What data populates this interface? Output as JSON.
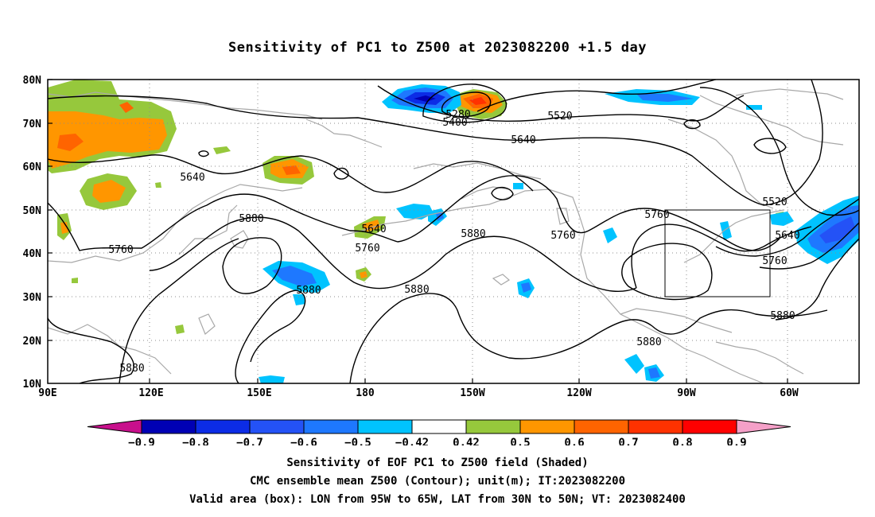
{
  "title": "Sensitivity of PC1 to Z500 at 2023082200 +1.5 day",
  "map": {
    "lat_labels": [
      "80N",
      "70N",
      "60N",
      "50N",
      "40N",
      "30N",
      "20N",
      "10N"
    ],
    "lon_labels": [
      "90E",
      "120E",
      "150E",
      "180",
      "150W",
      "120W",
      "90W",
      "60W"
    ],
    "contour_labels": [
      "5280",
      "5400",
      "5520",
      "5640",
      "5640",
      "5640",
      "5760",
      "5760",
      "5760",
      "5760",
      "5880",
      "5880",
      "5880",
      "5880",
      "5880",
      "5880",
      "5520",
      "5640",
      "5760",
      "5880"
    ],
    "valid_box": {
      "lon": [
        "95W",
        "65W"
      ],
      "lat": [
        "30N",
        "50N"
      ]
    },
    "colors": {
      "contour": "#000000",
      "coast": "#a8a8a8",
      "grid": "#8c8c8c"
    }
  },
  "colorbar": {
    "labels": [
      "−0.9",
      "−0.8",
      "−0.7",
      "−0.6",
      "−0.5",
      "−0.42",
      "0.42",
      "0.5",
      "0.6",
      "0.7",
      "0.8",
      "0.9"
    ],
    "colors": [
      "#c8108c",
      "#0000b4",
      "#0c2ce6",
      "#2452f6",
      "#1e78ff",
      "#00c3ff",
      "#ffffff",
      "#96c83c",
      "#ff9600",
      "#ff6400",
      "#ff3200",
      "#ff0000",
      "#f5a0c8"
    ]
  },
  "caption": {
    "line1": "Sensitivity of EOF PC1 to Z500 field (Shaded)",
    "line2": "CMC ensemble mean Z500 (Contour); unit(m); IT:2023082200",
    "line3": "Valid area (box): LON from 95W to 65W, LAT from 30N to 50N; VT: 2023082400"
  }
}
